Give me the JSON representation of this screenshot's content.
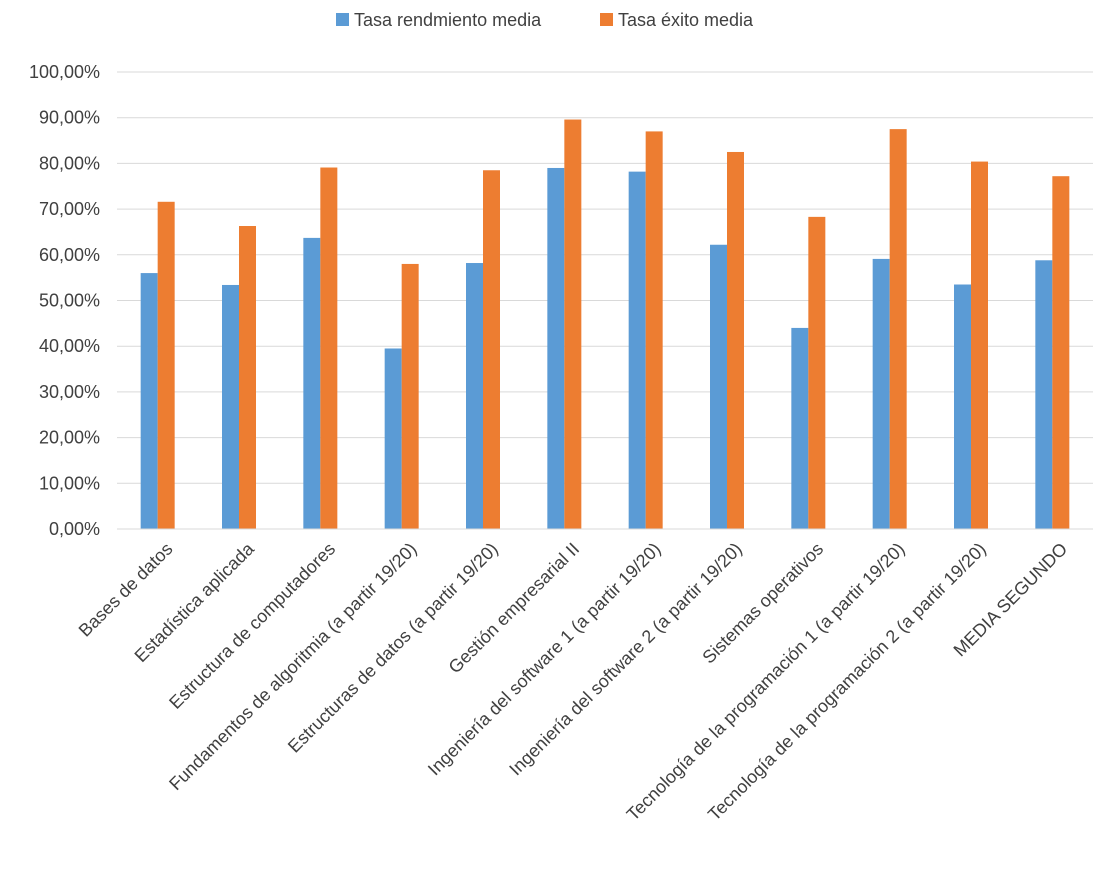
{
  "chart_data": {
    "type": "bar",
    "title": "",
    "xlabel": "",
    "ylabel": "",
    "ylim": [
      0,
      100
    ],
    "yticks": [
      0,
      10,
      20,
      30,
      40,
      50,
      60,
      70,
      80,
      90,
      100
    ],
    "ytick_labels": [
      "0,00%",
      "10,00%",
      "20,00%",
      "30,00%",
      "40,00%",
      "50,00%",
      "60,00%",
      "70,00%",
      "80,00%",
      "90,00%",
      "100,00%"
    ],
    "grid": true,
    "legend_position": "top-center",
    "categories": [
      "Bases de datos",
      "Estadística aplicada",
      "Estructura de computadores",
      "Fundamentos de algoritmia (a partir 19/20)",
      "Estructuras de datos (a partir 19/20)",
      "Gestión empresarial II",
      "Ingeniería del software 1 (a partir 19/20)",
      "Ingeniería del software 2 (a partir 19/20)",
      "Sistemas operativos",
      "Tecnología de la programación 1 (a partir 19/20)",
      "Tecnología de la programación 2 (a partir 19/20)",
      "MEDIA SEGUNDO"
    ],
    "series": [
      {
        "name": "Tasa rendmiento media",
        "color": "#5B9BD5",
        "values": [
          56.0,
          53.4,
          63.7,
          39.5,
          58.2,
          79.0,
          78.2,
          62.2,
          44.0,
          59.1,
          53.5,
          58.8
        ]
      },
      {
        "name": "Tasa éxito media",
        "color": "#ED7D31",
        "values": [
          71.6,
          66.3,
          79.1,
          58.0,
          78.5,
          89.6,
          87.0,
          82.5,
          68.3,
          87.5,
          80.4,
          77.2
        ]
      }
    ]
  }
}
